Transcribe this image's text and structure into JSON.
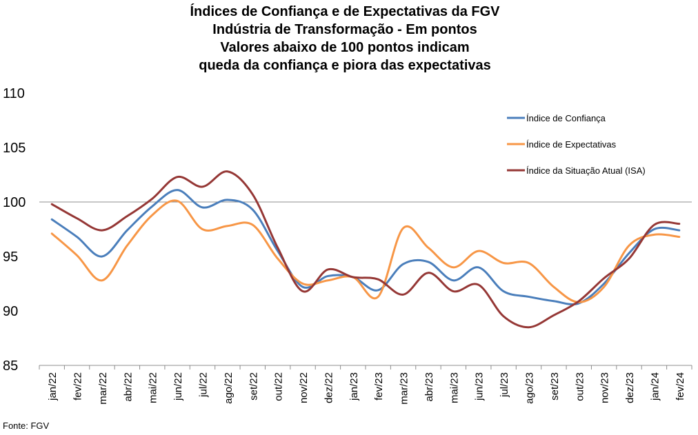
{
  "chart_data": {
    "type": "line",
    "title_lines": [
      "Índices de Confiança e de Expectativas da FGV",
      "Indústria de Transformação - Em pontos",
      "Valores abaixo de 100 pontos indicam",
      "queda da confiança e piora das expectativas"
    ],
    "categories": [
      "jan/22",
      "fev/22",
      "mar/22",
      "abr/22",
      "mai/22",
      "jun/22",
      "jul/22",
      "ago/22",
      "set/22",
      "out/22",
      "nov/22",
      "dez/22",
      "jan/23",
      "fev/23",
      "mar/23",
      "abr/23",
      "mai/23",
      "jun/23",
      "jul/23",
      "ago/23",
      "set/23",
      "out/23",
      "nov/23",
      "dez/23",
      "jan/24",
      "fev/24"
    ],
    "ylim": [
      85,
      110
    ],
    "yticks": [
      "85",
      "90",
      "95",
      "100",
      "105",
      "110"
    ],
    "reference_line": 100,
    "legend_position": "top-right",
    "series": [
      {
        "name": "Índice de Confiança",
        "color": "#4a7ebb",
        "values": [
          98.4,
          96.8,
          95.0,
          97.4,
          99.6,
          101.1,
          99.5,
          100.2,
          99.3,
          95.5,
          92.2,
          93.2,
          93.1,
          91.9,
          94.3,
          94.5,
          92.8,
          94.0,
          91.8,
          91.3,
          90.9,
          90.7,
          92.5,
          95.3,
          97.5,
          97.4
        ]
      },
      {
        "name": "Índice de Expectativas",
        "color": "#f79646",
        "values": [
          97.1,
          95.1,
          92.8,
          96.0,
          98.8,
          100.1,
          97.5,
          97.8,
          97.9,
          94.8,
          92.5,
          92.8,
          93.1,
          91.3,
          97.6,
          95.8,
          94.0,
          95.5,
          94.4,
          94.4,
          92.2,
          90.8,
          92.2,
          96.0,
          97.0,
          96.8
        ]
      },
      {
        "name": "Índice da Situação Atual (ISA)",
        "color": "#953735",
        "values": [
          99.8,
          98.5,
          97.4,
          98.7,
          100.3,
          102.3,
          101.4,
          102.8,
          100.7,
          95.8,
          91.8,
          93.8,
          93.1,
          92.9,
          91.5,
          93.5,
          91.8,
          92.4,
          89.5,
          88.5,
          89.6,
          90.9,
          93.0,
          94.8,
          97.9,
          98.0
        ]
      }
    ]
  },
  "source": "Fonte: FGV"
}
